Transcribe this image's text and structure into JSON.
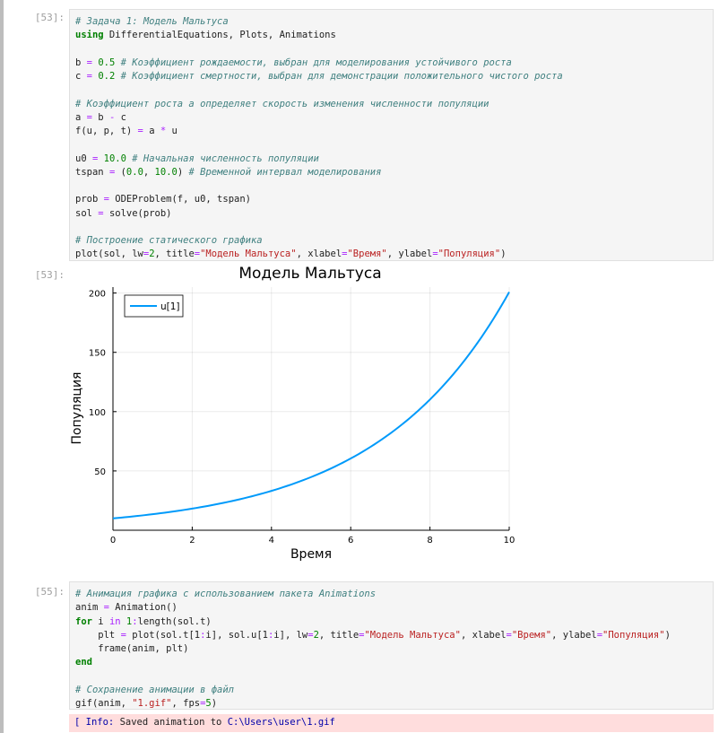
{
  "cell1": {
    "prompt": "[53]:",
    "lines": [
      [
        {
          "t": "cm",
          "v": "# Задача 1: Модель Мальтуса"
        }
      ],
      [
        {
          "t": "kw",
          "v": "using"
        },
        {
          "t": "",
          "v": " DifferentialEquations, Plots, Animations"
        }
      ],
      [],
      [
        {
          "t": "",
          "v": "b "
        },
        {
          "t": "op",
          "v": "="
        },
        {
          "t": "",
          "v": " "
        },
        {
          "t": "num",
          "v": "0.5"
        },
        {
          "t": "",
          "v": " "
        },
        {
          "t": "cm",
          "v": "# Коэффициент рождаемости, выбран для моделирования устойчивого роста"
        }
      ],
      [
        {
          "t": "",
          "v": "c "
        },
        {
          "t": "op",
          "v": "="
        },
        {
          "t": "",
          "v": " "
        },
        {
          "t": "num",
          "v": "0.2"
        },
        {
          "t": "",
          "v": " "
        },
        {
          "t": "cm",
          "v": "# Коэффициент смертности, выбран для демонстрации положительного чистого роста"
        }
      ],
      [],
      [
        {
          "t": "cm",
          "v": "# Коэффициент роста a определяет скорость изменения численности популяции"
        }
      ],
      [
        {
          "t": "",
          "v": "a "
        },
        {
          "t": "op",
          "v": "="
        },
        {
          "t": "",
          "v": " b "
        },
        {
          "t": "op",
          "v": "-"
        },
        {
          "t": "",
          "v": " c"
        }
      ],
      [
        {
          "t": "",
          "v": "f(u, p, t) "
        },
        {
          "t": "op",
          "v": "="
        },
        {
          "t": "",
          "v": " a "
        },
        {
          "t": "op",
          "v": "*"
        },
        {
          "t": "",
          "v": " u"
        }
      ],
      [],
      [
        {
          "t": "",
          "v": "u0 "
        },
        {
          "t": "op",
          "v": "="
        },
        {
          "t": "",
          "v": " "
        },
        {
          "t": "num",
          "v": "10.0"
        },
        {
          "t": "",
          "v": " "
        },
        {
          "t": "cm",
          "v": "# Начальная численность популяции"
        }
      ],
      [
        {
          "t": "",
          "v": "tspan "
        },
        {
          "t": "op",
          "v": "="
        },
        {
          "t": "",
          "v": " ("
        },
        {
          "t": "num",
          "v": "0.0"
        },
        {
          "t": "",
          "v": ", "
        },
        {
          "t": "num",
          "v": "10.0"
        },
        {
          "t": "",
          "v": ") "
        },
        {
          "t": "cm",
          "v": "# Временной интервал моделирования"
        }
      ],
      [],
      [
        {
          "t": "",
          "v": "prob "
        },
        {
          "t": "op",
          "v": "="
        },
        {
          "t": "",
          "v": " ODEProblem(f, u0, tspan)"
        }
      ],
      [
        {
          "t": "",
          "v": "sol "
        },
        {
          "t": "op",
          "v": "="
        },
        {
          "t": "",
          "v": " solve(prob)"
        }
      ],
      [],
      [
        {
          "t": "cm",
          "v": "# Построение статического графика"
        }
      ],
      [
        {
          "t": "",
          "v": "plot(sol, lw"
        },
        {
          "t": "op",
          "v": "="
        },
        {
          "t": "num",
          "v": "2"
        },
        {
          "t": "",
          "v": ", title"
        },
        {
          "t": "op",
          "v": "="
        },
        {
          "t": "str",
          "v": "\"Модель Мальтуса\""
        },
        {
          "t": "",
          "v": ", xlabel"
        },
        {
          "t": "op",
          "v": "="
        },
        {
          "t": "str",
          "v": "\"Время\""
        },
        {
          "t": "",
          "v": ", ylabel"
        },
        {
          "t": "op",
          "v": "="
        },
        {
          "t": "str",
          "v": "\"Популяция\""
        },
        {
          "t": "",
          "v": ")"
        }
      ]
    ]
  },
  "output1": {
    "prompt": "[53]:"
  },
  "chart_data": {
    "type": "line",
    "title": "Модель Мальтуса",
    "xlabel": "Время",
    "ylabel": "Популяция",
    "xlim": [
      0,
      10
    ],
    "ylim": [
      0,
      205
    ],
    "xticks": [
      "0",
      "2",
      "4",
      "6",
      "8",
      "10"
    ],
    "yticks": [
      "50",
      "100",
      "150",
      "200"
    ],
    "grid": true,
    "legend_position": "top-left",
    "series": [
      {
        "name": "u[1]",
        "color": "#009AFA",
        "x": [
          0,
          1,
          2,
          3,
          4,
          5,
          6,
          7,
          8,
          9,
          10
        ],
        "y": [
          10.0,
          13.5,
          18.22,
          24.6,
          33.2,
          44.82,
          60.5,
          81.66,
          110.23,
          148.8,
          200.86
        ]
      }
    ]
  },
  "cell2": {
    "prompt": "[55]:",
    "lines": [
      [
        {
          "t": "cm",
          "v": "# Анимация графика с использованием пакета Animations"
        }
      ],
      [
        {
          "t": "",
          "v": "anim "
        },
        {
          "t": "op",
          "v": "="
        },
        {
          "t": "",
          "v": " Animation()"
        }
      ],
      [
        {
          "t": "kw",
          "v": "for"
        },
        {
          "t": "",
          "v": " i "
        },
        {
          "t": "op",
          "v": "in"
        },
        {
          "t": "",
          "v": " "
        },
        {
          "t": "num",
          "v": "1"
        },
        {
          "t": "op",
          "v": ":"
        },
        {
          "t": "",
          "v": "length(sol.t)"
        }
      ],
      [
        {
          "t": "",
          "v": "    plt "
        },
        {
          "t": "op",
          "v": "="
        },
        {
          "t": "",
          "v": " plot(sol.t[1"
        },
        {
          "t": "op",
          "v": ":"
        },
        {
          "t": "",
          "v": "i], sol.u[1"
        },
        {
          "t": "op",
          "v": ":"
        },
        {
          "t": "",
          "v": "i], lw"
        },
        {
          "t": "op",
          "v": "="
        },
        {
          "t": "num",
          "v": "2"
        },
        {
          "t": "",
          "v": ", title"
        },
        {
          "t": "op",
          "v": "="
        },
        {
          "t": "str",
          "v": "\"Модель Мальтуса\""
        },
        {
          "t": "",
          "v": ", xlabel"
        },
        {
          "t": "op",
          "v": "="
        },
        {
          "t": "str",
          "v": "\"Время\""
        },
        {
          "t": "",
          "v": ", ylabel"
        },
        {
          "t": "op",
          "v": "="
        },
        {
          "t": "str",
          "v": "\"Популяция\""
        },
        {
          "t": "",
          "v": ")"
        }
      ],
      [
        {
          "t": "",
          "v": "    frame(anim, plt)"
        }
      ],
      [
        {
          "t": "kw",
          "v": "end"
        }
      ],
      [],
      [
        {
          "t": "cm",
          "v": "# Сохранение анимации в файл"
        }
      ],
      [
        {
          "t": "",
          "v": "gif(anim, "
        },
        {
          "t": "str",
          "v": "\"1.gif\""
        },
        {
          "t": "",
          "v": ", fps"
        },
        {
          "t": "op",
          "v": "="
        },
        {
          "t": "num",
          "v": "5"
        },
        {
          "t": "",
          "v": ")"
        }
      ]
    ]
  },
  "info": {
    "tag": "[ Info: ",
    "message": "Saved animation to ",
    "path": "C:\\Users\\user\\1.gif"
  }
}
